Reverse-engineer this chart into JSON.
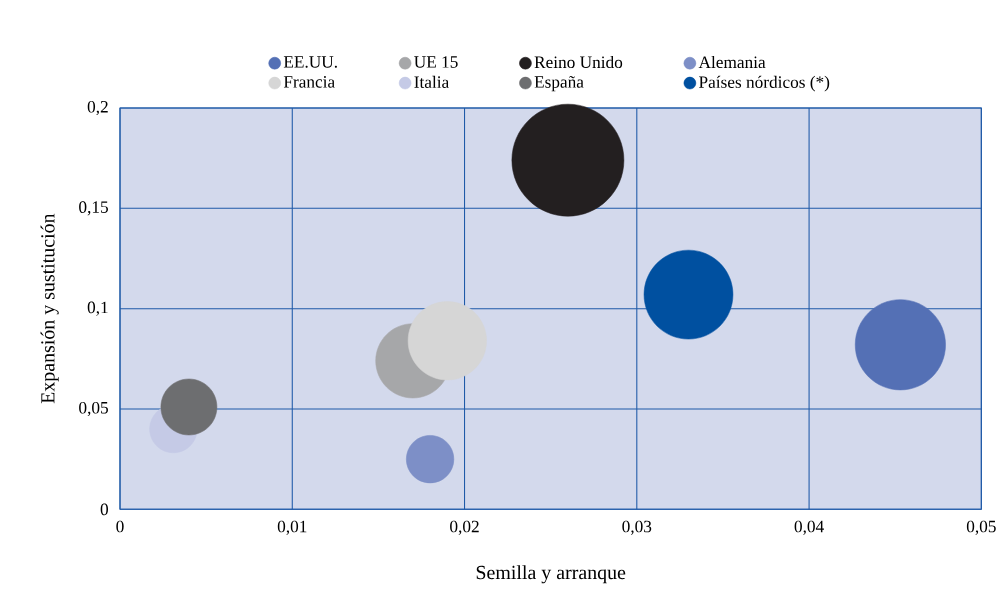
{
  "chart_data": {
    "type": "bubble",
    "xlabel": "Semilla y arranque",
    "ylabel": "Expansión y sustitución",
    "xlim": [
      0,
      0.05
    ],
    "ylim": [
      0,
      0.2
    ],
    "xticks": [
      0,
      {
        "value": 0.01,
        "label": "0,01"
      },
      {
        "value": 0.02,
        "label": "0,02"
      },
      {
        "value": 0.03,
        "label": "0,03"
      },
      {
        "value": 0.04,
        "label": "0,04"
      },
      {
        "value": 0.05,
        "label": "0,05"
      }
    ],
    "yticks": [
      0,
      {
        "value": 0.05,
        "label": "0,05"
      },
      {
        "value": 0.1,
        "label": "0,1"
      },
      {
        "value": 0.15,
        "label": "0,15"
      },
      {
        "value": 0.2,
        "label": "0,2"
      }
    ],
    "grid": true,
    "legend": "top",
    "series": [
      {
        "name": "EE.UU.",
        "color": "#5470b5",
        "x": [
          0.0453
        ],
        "values": [
          0.082
        ],
        "sizes": [
          0.65
        ]
      },
      {
        "name": "UE 15",
        "color": "#a6a7a9",
        "x": [
          0.017
        ],
        "values": [
          0.074
        ],
        "sizes": [
          0.44
        ]
      },
      {
        "name": "Reino Unido",
        "color": "#231f20",
        "x": [
          0.026
        ],
        "values": [
          0.174
        ],
        "sizes": [
          1
        ]
      },
      {
        "name": "Alemania",
        "color": "#7d8fc7",
        "x": [
          0.018
        ],
        "values": [
          0.025
        ],
        "sizes": [
          0.18
        ]
      },
      {
        "name": "Francia",
        "color": "#d6d6d6",
        "x": [
          0.019
        ],
        "values": [
          0.084
        ],
        "sizes": [
          0.49
        ]
      },
      {
        "name": "Italia",
        "color": "#c5cae6",
        "x": [
          0.0031
        ],
        "values": [
          0.04
        ],
        "sizes": [
          0.18
        ]
      },
      {
        "name": "España",
        "color": "#6d6e70",
        "x": [
          0.004
        ],
        "values": [
          0.051
        ],
        "sizes": [
          0.25
        ]
      },
      {
        "name": "Países nórdicos (*)",
        "color": "#0050a0",
        "x": [
          0.033
        ],
        "values": [
          0.107
        ],
        "sizes": [
          0.63
        ]
      }
    ]
  }
}
